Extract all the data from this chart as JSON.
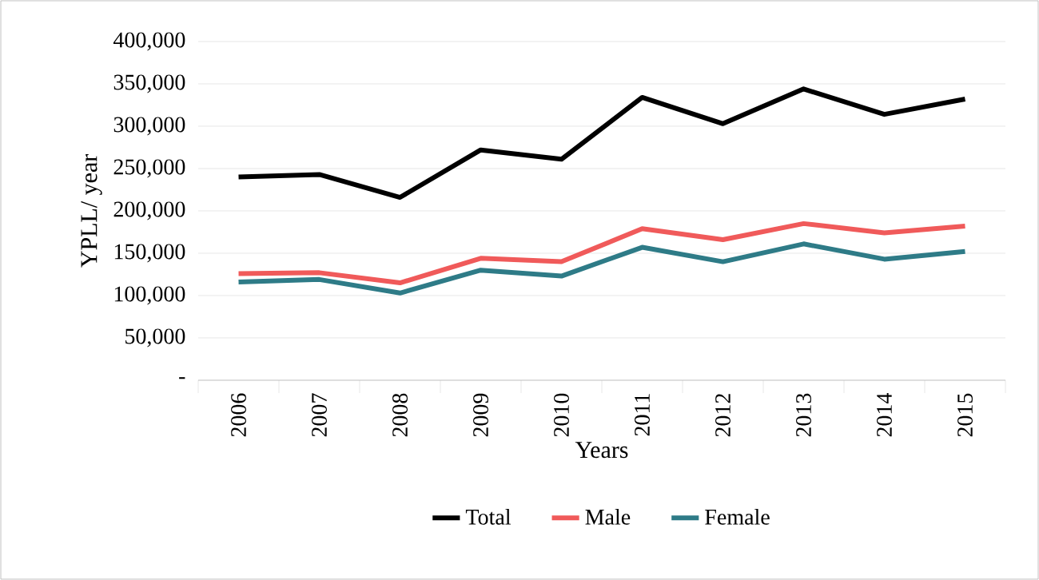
{
  "chart_data": {
    "type": "line",
    "xlabel": "Years",
    "ylabel": "YPLL/ year",
    "categories": [
      "2006",
      "2007",
      "2008",
      "2009",
      "2010",
      "2011",
      "2012",
      "2013",
      "2014",
      "2015"
    ],
    "series": [
      {
        "name": "Total",
        "color": "#000000",
        "values": [
          240000,
          243000,
          216000,
          272000,
          261000,
          334000,
          303000,
          344000,
          314000,
          332000
        ]
      },
      {
        "name": "Male",
        "color": "#f05a5a",
        "values": [
          126000,
          127000,
          115000,
          144000,
          140000,
          179000,
          166000,
          185000,
          174000,
          182000
        ]
      },
      {
        "name": "Female",
        "color": "#2e7b87",
        "values": [
          116000,
          119000,
          103000,
          130000,
          123000,
          157000,
          140000,
          161000,
          143000,
          152000
        ]
      }
    ],
    "ylim": [
      0,
      400000
    ],
    "yticks": [
      {
        "value": 0,
        "label": "-"
      },
      {
        "value": 50000,
        "label": "50,000"
      },
      {
        "value": 100000,
        "label": "100,000"
      },
      {
        "value": 150000,
        "label": "150,000"
      },
      {
        "value": 200000,
        "label": "200,000"
      },
      {
        "value": 250000,
        "label": "250,000"
      },
      {
        "value": 300000,
        "label": "300,000"
      },
      {
        "value": 350000,
        "label": "350,000"
      },
      {
        "value": 400000,
        "label": "400,000"
      }
    ],
    "grid": "y",
    "legend": "bottom",
    "marker": "none",
    "line_style": "solid"
  }
}
